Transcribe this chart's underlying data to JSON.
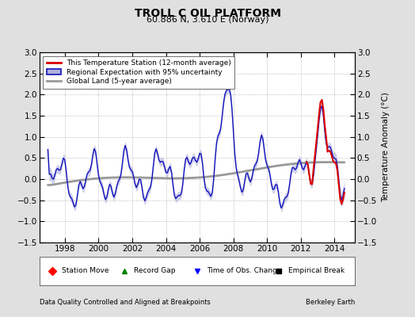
{
  "title": "TROLL C OIL PLATFORM",
  "subtitle": "60.886 N, 3.610 E (Norway)",
  "ylabel": "Temperature Anomaly (°C)",
  "xlabel_left": "Data Quality Controlled and Aligned at Breakpoints",
  "xlabel_right": "Berkeley Earth",
  "ylim": [
    -1.5,
    3.0
  ],
  "xlim": [
    1996.5,
    2015.2
  ],
  "yticks": [
    -1.5,
    -1.0,
    -0.5,
    0.0,
    0.5,
    1.0,
    1.5,
    2.0,
    2.5,
    3.0
  ],
  "xticks": [
    1998,
    2000,
    2002,
    2004,
    2006,
    2008,
    2010,
    2012,
    2014
  ],
  "legend_entries": [
    "This Temperature Station (12-month average)",
    "Regional Expectation with 95% uncertainty",
    "Global Land (5-year average)"
  ],
  "bg_color": "#e0e0e0",
  "plot_bg_color": "#ffffff",
  "red_color": "#dd0000",
  "blue_color": "#1111bb",
  "blue_fill_color": "#b0b0dd",
  "gray_color": "#999999",
  "gray_fill_color": "#cccccc"
}
